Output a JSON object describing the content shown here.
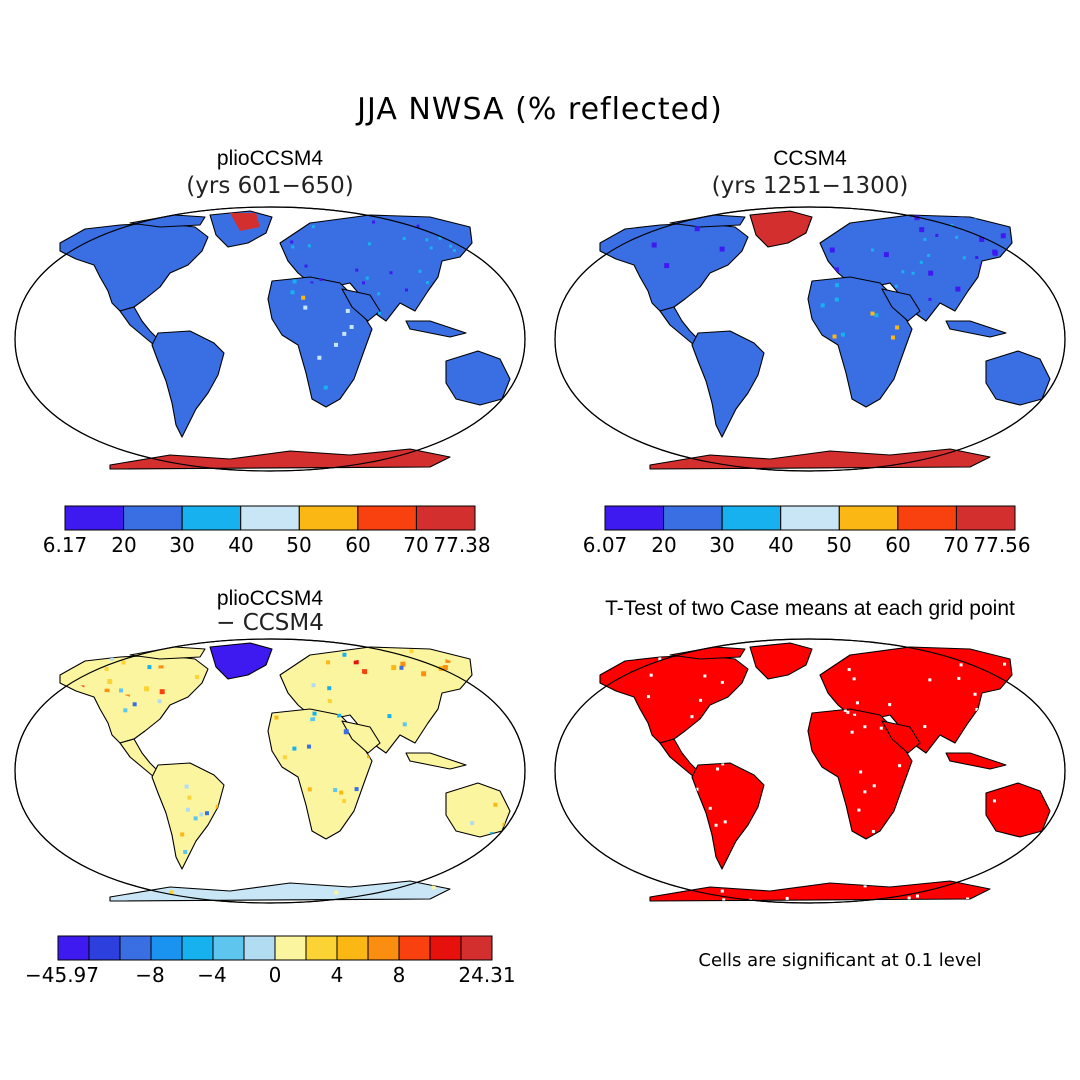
{
  "title": "JJA NWSA (% reflected)",
  "panels": [
    {
      "id": "plio",
      "title": "plioCCSM4",
      "subtitle": "(yrs 601−650)"
    },
    {
      "id": "ccsm",
      "title": "CCSM4",
      "subtitle": "(yrs 1251−1300)"
    },
    {
      "id": "diff",
      "title": "plioCCSM4",
      "subtitle": "− CCSM4"
    },
    {
      "id": "ttest",
      "title": "T-Test of two Case means at each grid point",
      "subtitle": ""
    }
  ],
  "colorbars": [
    {
      "id": "plio",
      "colors": [
        "#3e1af0",
        "#3a6fe3",
        "#17b1ef",
        "#c8e6f6",
        "#fbb714",
        "#f9400f",
        "#d42f2f"
      ],
      "labels": [
        "6.17",
        "20",
        "30",
        "40",
        "50",
        "60",
        "70",
        "77.38"
      ]
    },
    {
      "id": "ccsm",
      "colors": [
        "#3e1af0",
        "#3a6fe3",
        "#17b1ef",
        "#c8e6f6",
        "#fbb714",
        "#f9400f",
        "#d42f2f"
      ],
      "labels": [
        "6.07",
        "20",
        "30",
        "40",
        "50",
        "60",
        "70",
        "77.56"
      ]
    },
    {
      "id": "diff",
      "colors": [
        "#3e1af0",
        "#2d3fdc",
        "#3a6fe3",
        "#1993ef",
        "#17b1ef",
        "#5ec5ef",
        "#b2dcf2",
        "#fcf5a0",
        "#fcd335",
        "#fbb714",
        "#fb8d11",
        "#f9400f",
        "#e6110d",
        "#d42f2f"
      ],
      "labels": [
        "−45.97",
        "−8",
        "−4",
        "0",
        "4",
        "8",
        "24.31"
      ]
    }
  ],
  "significance_note": "Cells are significant at 0.1 level",
  "map_colors": {
    "land_low": "#3a6fe3",
    "land_very_low": "#3e1af0",
    "desert_mid": "#17b1ef",
    "desert_high": "#fbb714",
    "ice_high": "#d42f2f",
    "diff_base": "#fcf5a0",
    "diff_pos": "#fb8d11",
    "diff_neg": "#3a6fe3",
    "significant": "#ff0000"
  }
}
